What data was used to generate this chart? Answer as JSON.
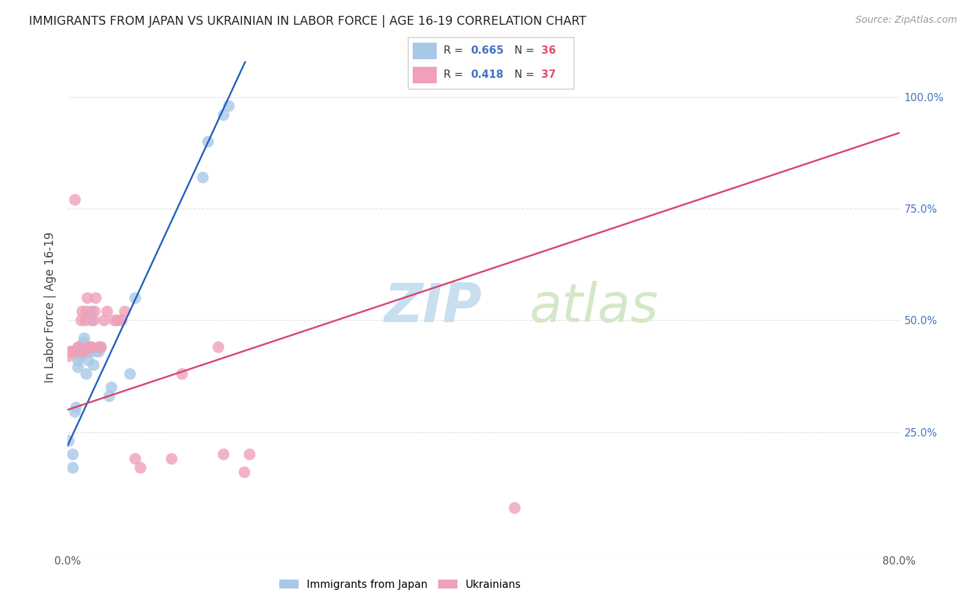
{
  "title": "IMMIGRANTS FROM JAPAN VS UKRAINIAN IN LABOR FORCE | AGE 16-19 CORRELATION CHART",
  "source": "Source: ZipAtlas.com",
  "ylabel": "In Labor Force | Age 16-19",
  "xlim": [
    0.0,
    0.8
  ],
  "ylim": [
    -0.02,
    1.08
  ],
  "xtick_positions": [
    0.0,
    0.1,
    0.2,
    0.3,
    0.4,
    0.5,
    0.6,
    0.7,
    0.8
  ],
  "xticklabels": [
    "0.0%",
    "",
    "",
    "",
    "",
    "",
    "",
    "",
    "80.0%"
  ],
  "ytick_positions": [
    0.0,
    0.25,
    0.5,
    0.75,
    1.0
  ],
  "ytick_labels_right": [
    "",
    "25.0%",
    "50.0%",
    "75.0%",
    "100.0%"
  ],
  "legend_japan_R": "0.665",
  "legend_japan_N": "36",
  "legend_ukraine_R": "0.418",
  "legend_ukraine_N": "37",
  "japan_color": "#a8c8e8",
  "ukraine_color": "#f0a0b8",
  "japan_line_color": "#2060c0",
  "ukraine_line_color": "#d84070",
  "watermark_zip_color": "#c8dff0",
  "watermark_atlas_color": "#d0e8d0",
  "background_color": "#ffffff",
  "grid_color": "#e0e0e0",
  "japan_x": [
    0.001,
    0.005,
    0.005,
    0.007,
    0.008,
    0.01,
    0.01,
    0.012,
    0.013,
    0.014,
    0.015,
    0.015,
    0.015,
    0.015,
    0.016,
    0.018,
    0.02,
    0.02,
    0.021,
    0.022,
    0.022,
    0.022,
    0.023,
    0.023,
    0.025,
    0.028,
    0.03,
    0.032,
    0.04,
    0.042,
    0.06,
    0.065,
    0.13,
    0.135,
    0.15,
    0.155
  ],
  "japan_y": [
    0.23,
    0.17,
    0.2,
    0.295,
    0.305,
    0.395,
    0.41,
    0.42,
    0.43,
    0.43,
    0.43,
    0.44,
    0.44,
    0.45,
    0.46,
    0.38,
    0.41,
    0.43,
    0.43,
    0.43,
    0.44,
    0.44,
    0.5,
    0.52,
    0.4,
    0.43,
    0.43,
    0.44,
    0.33,
    0.35,
    0.38,
    0.55,
    0.82,
    0.9,
    0.96,
    0.98
  ],
  "ukraine_x": [
    0.001,
    0.002,
    0.004,
    0.006,
    0.007,
    0.01,
    0.011,
    0.012,
    0.013,
    0.014,
    0.016,
    0.017,
    0.018,
    0.019,
    0.02,
    0.022,
    0.023,
    0.025,
    0.026,
    0.027,
    0.03,
    0.032,
    0.035,
    0.038,
    0.045,
    0.048,
    0.052,
    0.055,
    0.065,
    0.07,
    0.1,
    0.11,
    0.145,
    0.15,
    0.17,
    0.175,
    0.43
  ],
  "ukraine_y": [
    0.42,
    0.43,
    0.43,
    0.43,
    0.77,
    0.44,
    0.44,
    0.43,
    0.5,
    0.52,
    0.43,
    0.5,
    0.52,
    0.55,
    0.44,
    0.44,
    0.44,
    0.5,
    0.52,
    0.55,
    0.44,
    0.44,
    0.5,
    0.52,
    0.5,
    0.5,
    0.5,
    0.52,
    0.19,
    0.17,
    0.19,
    0.38,
    0.44,
    0.2,
    0.16,
    0.2,
    0.08
  ]
}
